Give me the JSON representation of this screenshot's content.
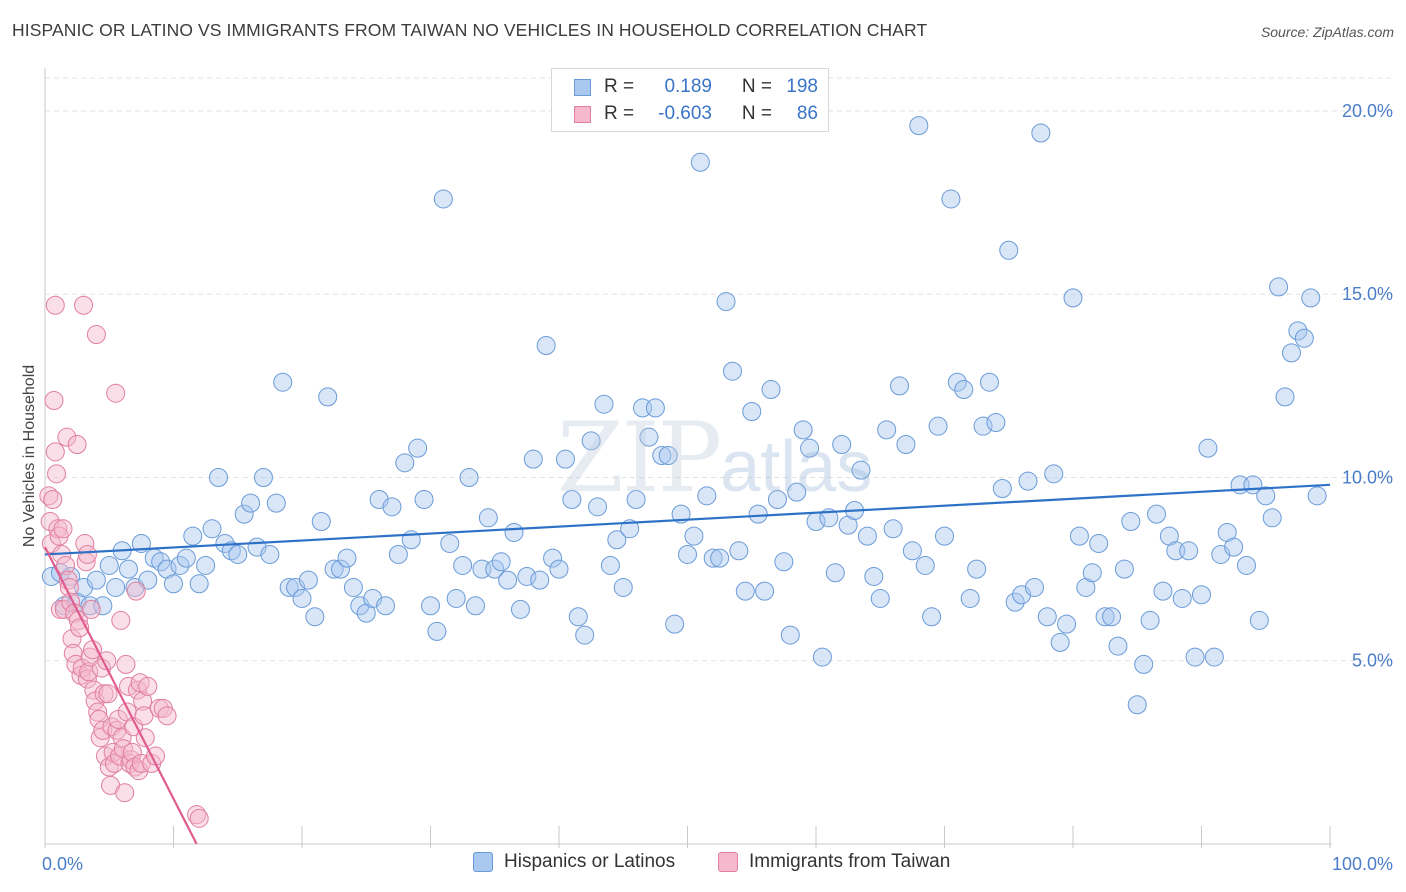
{
  "title": "HISPANIC OR LATINO VS IMMIGRANTS FROM TAIWAN NO VEHICLES IN HOUSEHOLD CORRELATION CHART",
  "source": "Source: ZipAtlas.com",
  "watermark": {
    "zip": "ZIP",
    "atlas": "atlas"
  },
  "legend": {
    "rows": [
      {
        "r_label": "R =",
        "r_value": "0.189",
        "n_label": "N =",
        "n_value": "198",
        "color": "#a8c8f0",
        "border": "#6a9bd8"
      },
      {
        "r_label": "R =",
        "r_value": "-0.603",
        "n_label": "N =",
        "n_value": "86",
        "color": "#f5b8cc",
        "border": "#e07fa0"
      }
    ]
  },
  "bottom_legend": [
    {
      "label": "Hispanics or Latinos",
      "color": "#a8c8f0",
      "border": "#6a9bd8"
    },
    {
      "label": "Immigrants from Taiwan",
      "color": "#f5b8cc",
      "border": "#e07fa0"
    }
  ],
  "chart_data": {
    "type": "scatter",
    "title": "HISPANIC OR LATINO VS IMMIGRANTS FROM TAIWAN NO VEHICLES IN HOUSEHOLD CORRELATION CHART",
    "xlabel": "",
    "ylabel": "No Vehicles in Household",
    "xlim": [
      0,
      100
    ],
    "ylim": [
      0,
      20
    ],
    "x_ticks": [
      "0.0%",
      "100.0%"
    ],
    "y_ticks": [
      {
        "value": 5,
        "label": "5.0%"
      },
      {
        "value": 10,
        "label": "10.0%"
      },
      {
        "value": 15,
        "label": "15.0%"
      },
      {
        "value": 20,
        "label": "20.0%"
      }
    ],
    "grid": "horizontal dashed",
    "legend_position": "top-center",
    "series": [
      {
        "name": "Hispanics or Latinos",
        "color": "#a8c8f0",
        "stroke": "#6a9bd8",
        "trend": {
          "x": [
            0,
            100
          ],
          "y": [
            7.9,
            9.8
          ],
          "color": "#2e72c8"
        },
        "points": [
          [
            0.5,
            7.3
          ],
          [
            1.2,
            7.4
          ],
          [
            1.5,
            6.5
          ],
          [
            2.0,
            7.3
          ],
          [
            2.5,
            6.6
          ],
          [
            3.0,
            7.0
          ],
          [
            3.5,
            6.5
          ],
          [
            4.0,
            7.2
          ],
          [
            4.5,
            6.5
          ],
          [
            5.0,
            7.6
          ],
          [
            5.5,
            7.0
          ],
          [
            6.0,
            8.0
          ],
          [
            6.5,
            7.5
          ],
          [
            7.0,
            7.0
          ],
          [
            7.5,
            8.2
          ],
          [
            8.0,
            7.2
          ],
          [
            8.5,
            7.8
          ],
          [
            9.0,
            7.7
          ],
          [
            9.5,
            7.5
          ],
          [
            10.0,
            7.1
          ],
          [
            10.5,
            7.6
          ],
          [
            11.0,
            7.8
          ],
          [
            11.5,
            8.4
          ],
          [
            12.0,
            7.1
          ],
          [
            12.5,
            7.6
          ],
          [
            13.0,
            8.6
          ],
          [
            13.5,
            10.0
          ],
          [
            14.0,
            8.2
          ],
          [
            14.5,
            8.0
          ],
          [
            15.0,
            7.9
          ],
          [
            15.5,
            9.0
          ],
          [
            16.0,
            9.3
          ],
          [
            16.5,
            8.1
          ],
          [
            17.0,
            10.0
          ],
          [
            17.5,
            7.9
          ],
          [
            18.0,
            9.3
          ],
          [
            18.5,
            12.6
          ],
          [
            19.0,
            7.0
          ],
          [
            19.5,
            7.0
          ],
          [
            20.0,
            6.7
          ],
          [
            20.5,
            7.2
          ],
          [
            21.0,
            6.2
          ],
          [
            21.5,
            8.8
          ],
          [
            22.0,
            12.2
          ],
          [
            22.5,
            7.5
          ],
          [
            23.0,
            7.5
          ],
          [
            23.5,
            7.8
          ],
          [
            24.0,
            7.0
          ],
          [
            24.5,
            6.5
          ],
          [
            25.0,
            6.3
          ],
          [
            25.5,
            6.7
          ],
          [
            26.0,
            9.4
          ],
          [
            26.5,
            6.5
          ],
          [
            27.0,
            9.2
          ],
          [
            27.5,
            7.9
          ],
          [
            28.0,
            10.4
          ],
          [
            28.5,
            8.3
          ],
          [
            29.0,
            10.8
          ],
          [
            29.5,
            9.4
          ],
          [
            30.0,
            6.5
          ],
          [
            30.5,
            5.8
          ],
          [
            31.0,
            17.6
          ],
          [
            31.5,
            8.2
          ],
          [
            32.0,
            6.7
          ],
          [
            32.5,
            7.6
          ],
          [
            33.0,
            10.0
          ],
          [
            33.5,
            6.5
          ],
          [
            34.0,
            7.5
          ],
          [
            34.5,
            8.9
          ],
          [
            35.0,
            7.5
          ],
          [
            35.5,
            7.7
          ],
          [
            36.0,
            7.2
          ],
          [
            36.5,
            8.5
          ],
          [
            37.0,
            6.4
          ],
          [
            37.5,
            7.3
          ],
          [
            38.0,
            10.5
          ],
          [
            38.5,
            7.2
          ],
          [
            39.0,
            13.6
          ],
          [
            39.5,
            7.8
          ],
          [
            40.0,
            7.5
          ],
          [
            40.5,
            10.5
          ],
          [
            41.0,
            9.4
          ],
          [
            41.5,
            6.2
          ],
          [
            42.0,
            5.7
          ],
          [
            42.5,
            11.0
          ],
          [
            43.0,
            9.2
          ],
          [
            43.5,
            12.0
          ],
          [
            44.0,
            7.6
          ],
          [
            44.5,
            8.3
          ],
          [
            45.0,
            7.0
          ],
          [
            45.5,
            8.6
          ],
          [
            46.0,
            9.4
          ],
          [
            46.5,
            11.9
          ],
          [
            47.0,
            11.1
          ],
          [
            47.5,
            11.9
          ],
          [
            48.0,
            10.6
          ],
          [
            48.5,
            10.6
          ],
          [
            49.0,
            6.0
          ],
          [
            49.5,
            9.0
          ],
          [
            50.0,
            7.9
          ],
          [
            50.5,
            8.4
          ],
          [
            51.0,
            18.6
          ],
          [
            51.5,
            9.5
          ],
          [
            52.0,
            7.8
          ],
          [
            52.5,
            7.8
          ],
          [
            53.0,
            14.8
          ],
          [
            53.5,
            12.9
          ],
          [
            54.0,
            8.0
          ],
          [
            54.5,
            6.9
          ],
          [
            55.0,
            11.8
          ],
          [
            55.5,
            9.0
          ],
          [
            56.0,
            6.9
          ],
          [
            56.5,
            12.4
          ],
          [
            57.0,
            9.4
          ],
          [
            57.5,
            7.7
          ],
          [
            58.0,
            5.7
          ],
          [
            58.5,
            9.6
          ],
          [
            59.0,
            11.3
          ],
          [
            59.5,
            10.8
          ],
          [
            60.0,
            8.8
          ],
          [
            60.5,
            5.1
          ],
          [
            61.0,
            8.9
          ],
          [
            61.5,
            7.4
          ],
          [
            62.0,
            10.9
          ],
          [
            62.5,
            8.7
          ],
          [
            63.0,
            9.1
          ],
          [
            63.5,
            10.2
          ],
          [
            64.0,
            8.4
          ],
          [
            64.5,
            7.3
          ],
          [
            65.0,
            6.7
          ],
          [
            65.5,
            11.3
          ],
          [
            66.0,
            8.6
          ],
          [
            66.5,
            12.5
          ],
          [
            67.0,
            10.9
          ],
          [
            67.5,
            8.0
          ],
          [
            68.0,
            19.6
          ],
          [
            68.5,
            7.6
          ],
          [
            69.0,
            6.2
          ],
          [
            69.5,
            11.4
          ],
          [
            70.0,
            8.4
          ],
          [
            70.5,
            17.6
          ],
          [
            71.0,
            12.6
          ],
          [
            71.5,
            12.4
          ],
          [
            72.0,
            6.7
          ],
          [
            72.5,
            7.5
          ],
          [
            73.0,
            11.4
          ],
          [
            73.5,
            12.6
          ],
          [
            74.0,
            11.5
          ],
          [
            74.5,
            9.7
          ],
          [
            75.0,
            16.2
          ],
          [
            75.5,
            6.6
          ],
          [
            76.0,
            6.8
          ],
          [
            76.5,
            9.9
          ],
          [
            77.0,
            7.0
          ],
          [
            77.5,
            19.4
          ],
          [
            78.0,
            6.2
          ],
          [
            78.5,
            10.1
          ],
          [
            79.0,
            5.5
          ],
          [
            79.5,
            6.0
          ],
          [
            80.0,
            14.9
          ],
          [
            80.5,
            8.4
          ],
          [
            81.0,
            7.0
          ],
          [
            81.5,
            7.4
          ],
          [
            82.0,
            8.2
          ],
          [
            82.5,
            6.2
          ],
          [
            83.0,
            6.2
          ],
          [
            83.5,
            5.4
          ],
          [
            84.0,
            7.5
          ],
          [
            84.5,
            8.8
          ],
          [
            85.0,
            3.8
          ],
          [
            85.5,
            4.9
          ],
          [
            86.0,
            6.1
          ],
          [
            86.5,
            9.0
          ],
          [
            87.0,
            6.9
          ],
          [
            87.5,
            8.4
          ],
          [
            88.0,
            8.0
          ],
          [
            88.5,
            6.7
          ],
          [
            89.0,
            8.0
          ],
          [
            89.5,
            5.1
          ],
          [
            90.0,
            6.8
          ],
          [
            90.5,
            10.8
          ],
          [
            91.0,
            5.1
          ],
          [
            91.5,
            7.9
          ],
          [
            92.0,
            8.5
          ],
          [
            92.5,
            8.1
          ],
          [
            93.0,
            9.8
          ],
          [
            93.5,
            7.6
          ],
          [
            94.0,
            9.8
          ],
          [
            94.5,
            6.1
          ],
          [
            95.0,
            9.5
          ],
          [
            95.5,
            8.9
          ],
          [
            96.0,
            15.2
          ],
          [
            96.5,
            12.2
          ],
          [
            97.0,
            13.4
          ],
          [
            97.5,
            14.0
          ],
          [
            98.0,
            13.8
          ],
          [
            98.5,
            14.9
          ],
          [
            99.0,
            9.5
          ]
        ]
      },
      {
        "name": "Immigrants from Taiwan",
        "color": "#f5b8cc",
        "stroke": "#e07fa0",
        "trend": {
          "x": [
            0,
            11.8
          ],
          "y": [
            8.1,
            0.0
          ],
          "color": "#e05c8e"
        },
        "points": [
          [
            0.3,
            9.5
          ],
          [
            0.4,
            8.8
          ],
          [
            0.5,
            8.2
          ],
          [
            0.6,
            9.4
          ],
          [
            0.7,
            12.1
          ],
          [
            0.8,
            10.7
          ],
          [
            0.9,
            10.1
          ],
          [
            1.0,
            8.6
          ],
          [
            1.1,
            8.4
          ],
          [
            1.2,
            6.4
          ],
          [
            1.3,
            7.9
          ],
          [
            1.4,
            8.6
          ],
          [
            1.5,
            6.4
          ],
          [
            1.6,
            7.6
          ],
          [
            1.7,
            11.1
          ],
          [
            1.8,
            7.2
          ],
          [
            1.9,
            7.0
          ],
          [
            2.0,
            6.6
          ],
          [
            2.1,
            5.6
          ],
          [
            2.2,
            5.2
          ],
          [
            2.3,
            6.3
          ],
          [
            2.4,
            4.9
          ],
          [
            2.5,
            10.9
          ],
          [
            2.6,
            6.1
          ],
          [
            2.7,
            5.9
          ],
          [
            2.8,
            4.6
          ],
          [
            2.9,
            4.8
          ],
          [
            3.0,
            14.7
          ],
          [
            3.1,
            8.2
          ],
          [
            3.2,
            7.7
          ],
          [
            3.3,
            4.5
          ],
          [
            3.4,
            4.7
          ],
          [
            3.5,
            5.1
          ],
          [
            3.6,
            6.4
          ],
          [
            3.7,
            5.3
          ],
          [
            3.8,
            4.2
          ],
          [
            3.9,
            3.9
          ],
          [
            4.0,
            13.9
          ],
          [
            4.1,
            3.6
          ],
          [
            4.2,
            3.4
          ],
          [
            4.3,
            2.9
          ],
          [
            4.4,
            4.8
          ],
          [
            4.5,
            3.1
          ],
          [
            4.6,
            4.1
          ],
          [
            4.7,
            2.4
          ],
          [
            4.8,
            5.0
          ],
          [
            4.9,
            4.1
          ],
          [
            5.0,
            2.1
          ],
          [
            5.1,
            1.6
          ],
          [
            5.2,
            3.2
          ],
          [
            5.3,
            2.5
          ],
          [
            5.4,
            2.2
          ],
          [
            5.5,
            12.3
          ],
          [
            5.6,
            3.1
          ],
          [
            5.7,
            3.4
          ],
          [
            5.8,
            2.4
          ],
          [
            5.9,
            6.1
          ],
          [
            6.0,
            2.9
          ],
          [
            6.1,
            2.6
          ],
          [
            6.2,
            1.4
          ],
          [
            6.3,
            4.9
          ],
          [
            6.4,
            3.6
          ],
          [
            6.5,
            4.3
          ],
          [
            6.6,
            2.2
          ],
          [
            6.7,
            2.3
          ],
          [
            6.8,
            2.5
          ],
          [
            6.9,
            3.2
          ],
          [
            7.0,
            2.1
          ],
          [
            7.1,
            6.9
          ],
          [
            7.2,
            4.2
          ],
          [
            7.3,
            2.0
          ],
          [
            7.4,
            4.4
          ],
          [
            7.5,
            2.2
          ],
          [
            7.6,
            3.9
          ],
          [
            7.7,
            3.5
          ],
          [
            7.8,
            2.9
          ],
          [
            8.0,
            4.3
          ],
          [
            8.3,
            2.2
          ],
          [
            8.6,
            2.4
          ],
          [
            8.9,
            3.7
          ],
          [
            9.2,
            3.7
          ],
          [
            9.5,
            3.5
          ],
          [
            11.8,
            0.8
          ],
          [
            12.0,
            0.7
          ],
          [
            0.8,
            14.7
          ],
          [
            3.3,
            7.9
          ]
        ]
      }
    ]
  }
}
